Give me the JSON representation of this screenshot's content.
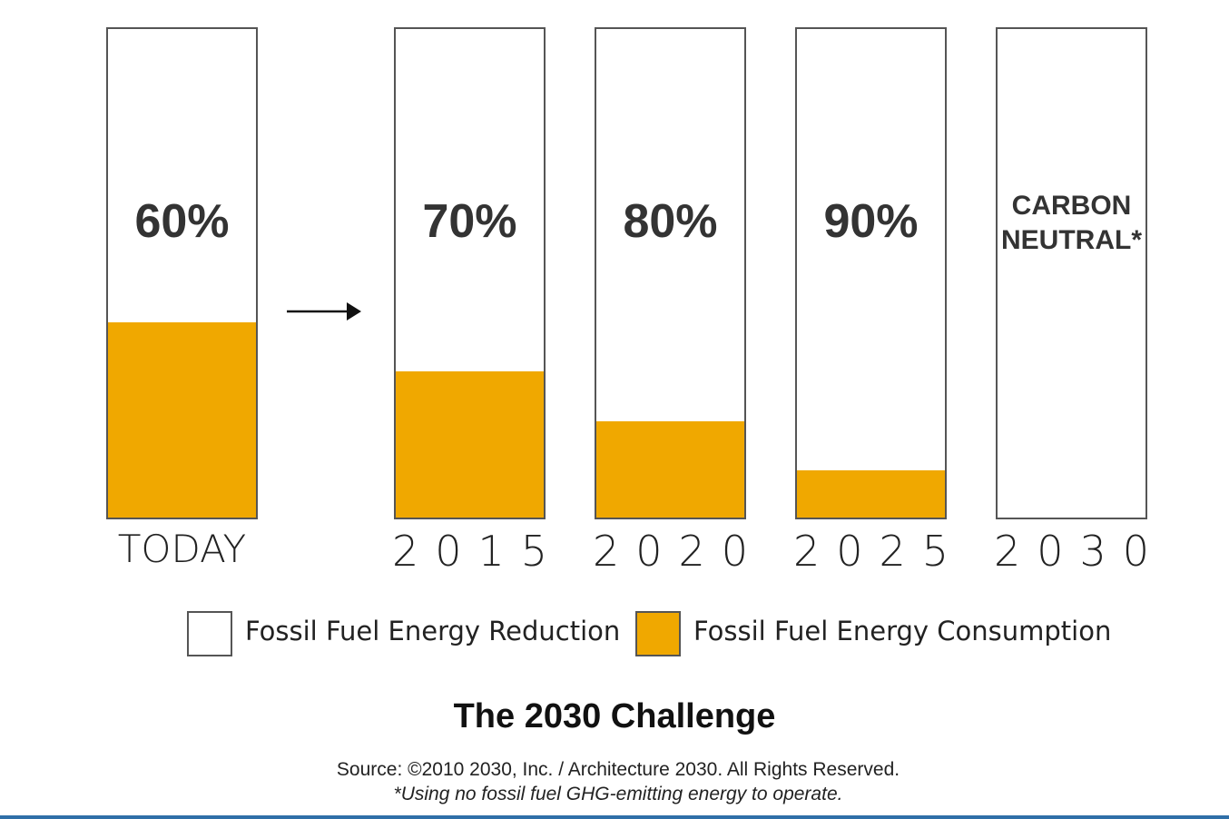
{
  "chart_data": {
    "type": "bar",
    "stacked": true,
    "title": "The 2030 Challenge",
    "source": "Source: ©2010 2030, Inc. / Architecture 2030. All Rights Reserved.",
    "note": "*Using no fossil fuel GHG-emitting energy to operate.",
    "categories": [
      "TODAY",
      "2015",
      "2020",
      "2025",
      "2030"
    ],
    "series": [
      {
        "name": "Fossil Fuel Energy Reduction",
        "color": "#ffffff",
        "values": [
          60,
          70,
          80,
          90,
          100
        ],
        "value_labels": [
          "60%",
          "70%",
          "80%",
          "90%",
          "CARBON NEUTRAL*"
        ]
      },
      {
        "name": "Fossil Fuel Energy Consumption",
        "color": "#f0a800",
        "values": [
          40,
          30,
          20,
          10,
          0
        ]
      }
    ],
    "ylim": [
      0,
      100
    ]
  }
}
